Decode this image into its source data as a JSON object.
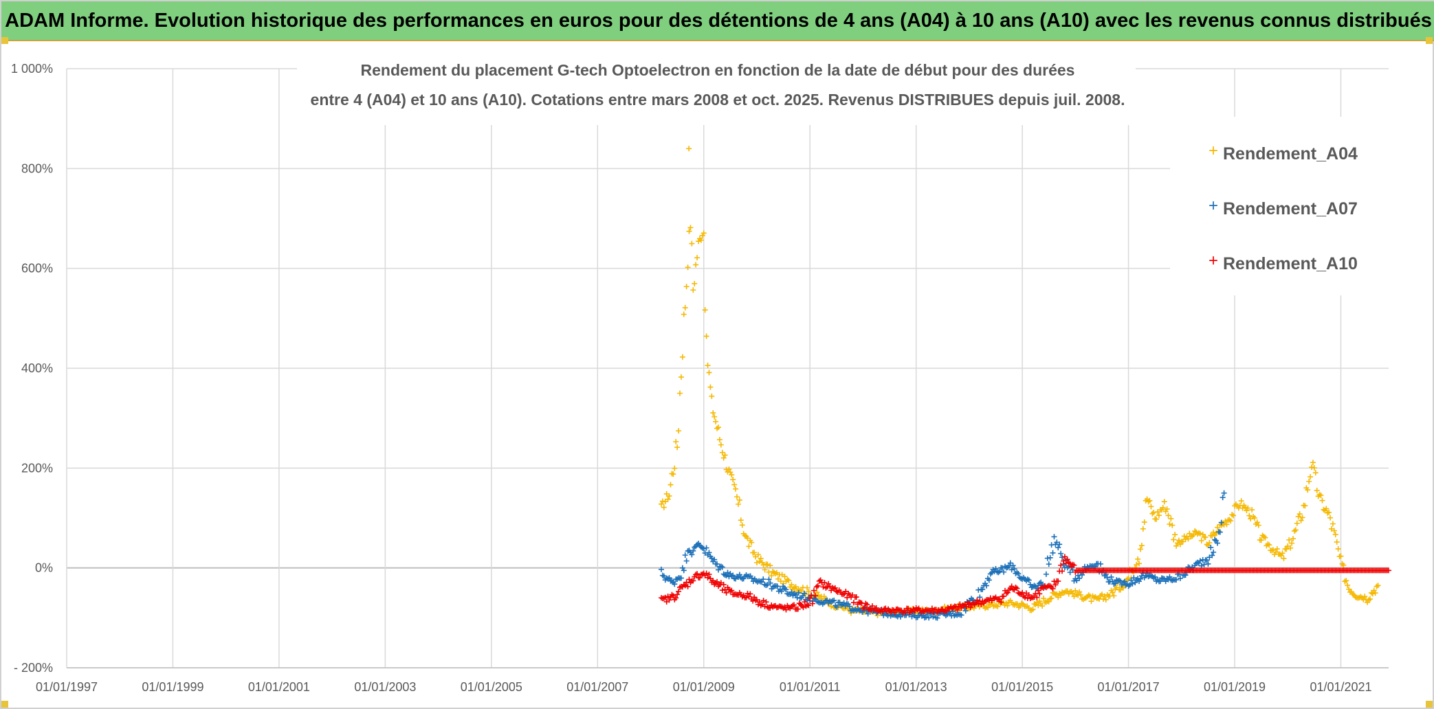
{
  "banner": {
    "title": "ADAM Informe. Evolution historique des performances en euros pour des détentions de 4 ans (A04) à 10 ans (A10) avec les revenus connus distribués"
  },
  "colors": {
    "banner_bg": "#7fcf7f",
    "A04": "#f5b800",
    "A07": "#1a6fb8",
    "A10": "#f00000",
    "grid": "#d9d9d9",
    "axis_text": "#595959"
  },
  "chart_data": {
    "type": "scatter",
    "title_line1": "Rendement du placement G-tech Optoelectron  en fonction de la date de début pour des durées",
    "title_line2": "entre 4 (A04) et 10 ans (A10). Cotations entre mars 2008 et oct. 2025. Revenus DISTRIBUES depuis juil. 2008.",
    "x_range": [
      1997.0,
      2021.9
    ],
    "y_range": [
      -200,
      1000
    ],
    "x_ticks": [
      {
        "value": 1997,
        "label": "01/01/1997"
      },
      {
        "value": 1999,
        "label": "01/01/1999"
      },
      {
        "value": 2001,
        "label": "01/01/2001"
      },
      {
        "value": 2003,
        "label": "01/01/2003"
      },
      {
        "value": 2005,
        "label": "01/01/2005"
      },
      {
        "value": 2007,
        "label": "01/01/2007"
      },
      {
        "value": 2009,
        "label": "01/01/2009"
      },
      {
        "value": 2011,
        "label": "01/01/2011"
      },
      {
        "value": 2013,
        "label": "01/01/2013"
      },
      {
        "value": 2015,
        "label": "01/01/2015"
      },
      {
        "value": 2017,
        "label": "01/01/2017"
      },
      {
        "value": 2019,
        "label": "01/01/2019"
      },
      {
        "value": 2021,
        "label": "01/01/2021"
      }
    ],
    "y_ticks": [
      {
        "value": -200,
        "label": "- 200%"
      },
      {
        "value": 0,
        "label": "0%"
      },
      {
        "value": 200,
        "label": "200%"
      },
      {
        "value": 400,
        "label": "400%"
      },
      {
        "value": 600,
        "label": "600%"
      },
      {
        "value": 800,
        "label": "800%"
      },
      {
        "value": 1000,
        "label": "1 000%"
      }
    ],
    "legend": [
      "Rendement_A04",
      "Rendement_A07",
      "Rendement_A10"
    ],
    "legend_position": "top-right",
    "series": [
      {
        "name": "Rendement_A04",
        "x": [
          2008.2,
          2008.35,
          2008.5,
          2008.6,
          2008.7,
          2008.75,
          2008.8,
          2008.9,
          2009.0,
          2009.05,
          2009.15,
          2009.3,
          2009.45,
          2009.6,
          2009.8,
          2010.0,
          2010.3,
          2010.6,
          2011.0,
          2011.4,
          2011.8,
          2012.3,
          2012.8,
          2013.3,
          2013.8,
          2014.3,
          2014.8,
          2015.2,
          2015.5,
          2015.8,
          2016.1,
          2016.4,
          2016.7,
          2017.0,
          2017.2,
          2017.35,
          2017.5,
          2017.7,
          2017.9,
          2018.1,
          2018.3,
          2018.5,
          2018.7,
          2018.9,
          2019.1,
          2019.3,
          2019.5,
          2019.7,
          2019.9,
          2020.1,
          2020.3,
          2020.45,
          2020.6,
          2020.8,
          2021.0,
          2021.15,
          2021.3,
          2021.5,
          2021.7
        ],
        "y": [
          120,
          150,
          250,
          450,
          620,
          700,
          560,
          650,
          680,
          440,
          330,
          260,
          200,
          150,
          60,
          20,
          -10,
          -30,
          -50,
          -70,
          -85,
          -90,
          -88,
          -85,
          -80,
          -75,
          -70,
          -80,
          -60,
          -45,
          -55,
          -65,
          -50,
          -20,
          30,
          140,
          100,
          130,
          50,
          60,
          70,
          50,
          80,
          100,
          130,
          110,
          60,
          40,
          20,
          60,
          120,
          210,
          140,
          100,
          10,
          -40,
          -55,
          -60,
          -35
        ]
      },
      {
        "name": "Rendement_A07",
        "x": [
          2008.2,
          2008.4,
          2008.6,
          2008.7,
          2008.8,
          2008.9,
          2009.0,
          2009.2,
          2009.5,
          2009.8,
          2010.2,
          2010.6,
          2011.0,
          2011.4,
          2011.8,
          2012.2,
          2012.6,
          2013.0,
          2013.4,
          2013.8,
          2014.2,
          2014.4,
          2014.6,
          2014.8,
          2015.0,
          2015.2,
          2015.4,
          2015.6,
          2015.8,
          2016.0,
          2016.2,
          2016.4,
          2016.6,
          2016.8,
          2017.0,
          2017.3,
          2017.6,
          2017.9,
          2018.2,
          2018.5,
          2018.7,
          2018.8
        ],
        "y": [
          -10,
          -30,
          -10,
          40,
          30,
          50,
          40,
          10,
          -15,
          -20,
          -30,
          -50,
          -60,
          -70,
          -80,
          -88,
          -92,
          -95,
          -95,
          -90,
          -50,
          -10,
          -5,
          5,
          -20,
          -40,
          -30,
          60,
          10,
          -20,
          0,
          10,
          -20,
          -30,
          -30,
          -15,
          -25,
          -20,
          0,
          20,
          60,
          150
        ]
      },
      {
        "name": "Rendement_A10",
        "x": [
          2008.2,
          2008.4,
          2008.6,
          2008.8,
          2009.0,
          2009.2,
          2009.5,
          2009.8,
          2010.1,
          2010.4,
          2010.7,
          2011.0,
          2011.2,
          2011.4,
          2011.6,
          2011.8,
          2012.0,
          2012.3,
          2012.6,
          2012.9,
          2013.2,
          2013.5,
          2013.8,
          2014.1,
          2014.4,
          2014.6,
          2014.8,
          2015.0,
          2015.2,
          2015.4,
          2015.6,
          2015.8,
          2016.0,
          2017.0,
          2018.0,
          2019.0,
          2020.0,
          2021.0,
          2021.9
        ],
        "y": [
          -65,
          -60,
          -40,
          -20,
          -10,
          -30,
          -50,
          -55,
          -70,
          -80,
          -80,
          -70,
          -30,
          -40,
          -50,
          -60,
          -75,
          -85,
          -85,
          -85,
          -85,
          -85,
          -80,
          -70,
          -65,
          -60,
          -40,
          -50,
          -60,
          -40,
          -40,
          20,
          -5,
          -5,
          -5,
          -5,
          -5,
          -5,
          -5
        ]
      }
    ]
  }
}
